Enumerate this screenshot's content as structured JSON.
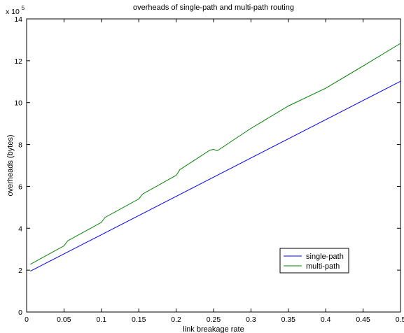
{
  "chart_data": {
    "type": "line",
    "title": "overheads of single-path and multi-path routing",
    "xlabel": "link breakage rate",
    "ylabel": "overheads (bytes)",
    "y_multiplier_label": "x 10",
    "y_multiplier_exponent": "5",
    "xlim": [
      0,
      0.5
    ],
    "ylim": [
      0,
      1400000
    ],
    "x_ticks": [
      0,
      0.05,
      0.1,
      0.15,
      0.2,
      0.25,
      0.3,
      0.35,
      0.4,
      0.45,
      0.5
    ],
    "x_tick_labels": [
      "0",
      "0.05",
      "0.1",
      "0.15",
      "0.2",
      "0.25",
      "0.3",
      "0.35",
      "0.4",
      "0.45",
      "0.5"
    ],
    "y_ticks": [
      0,
      200000,
      400000,
      600000,
      800000,
      1000000,
      1200000,
      1400000
    ],
    "y_tick_labels": [
      "0",
      "2",
      "4",
      "6",
      "8",
      "10",
      "12",
      "14"
    ],
    "grid": false,
    "legend_position": "lower-right",
    "series": [
      {
        "name": "single-path",
        "color": "#0000ff",
        "x": [
          0.005,
          0.5
        ],
        "y": [
          195000,
          1102000
        ]
      },
      {
        "name": "multi-path",
        "color": "#008000",
        "x": [
          0.005,
          0.05,
          0.055,
          0.1,
          0.105,
          0.15,
          0.155,
          0.2,
          0.205,
          0.245,
          0.25,
          0.255,
          0.3,
          0.35,
          0.4,
          0.45,
          0.5
        ],
        "y": [
          228000,
          316000,
          340000,
          428000,
          452000,
          540000,
          563000,
          653000,
          680000,
          773000,
          777000,
          770000,
          877000,
          984000,
          1069000,
          1175000,
          1283000
        ]
      }
    ]
  }
}
